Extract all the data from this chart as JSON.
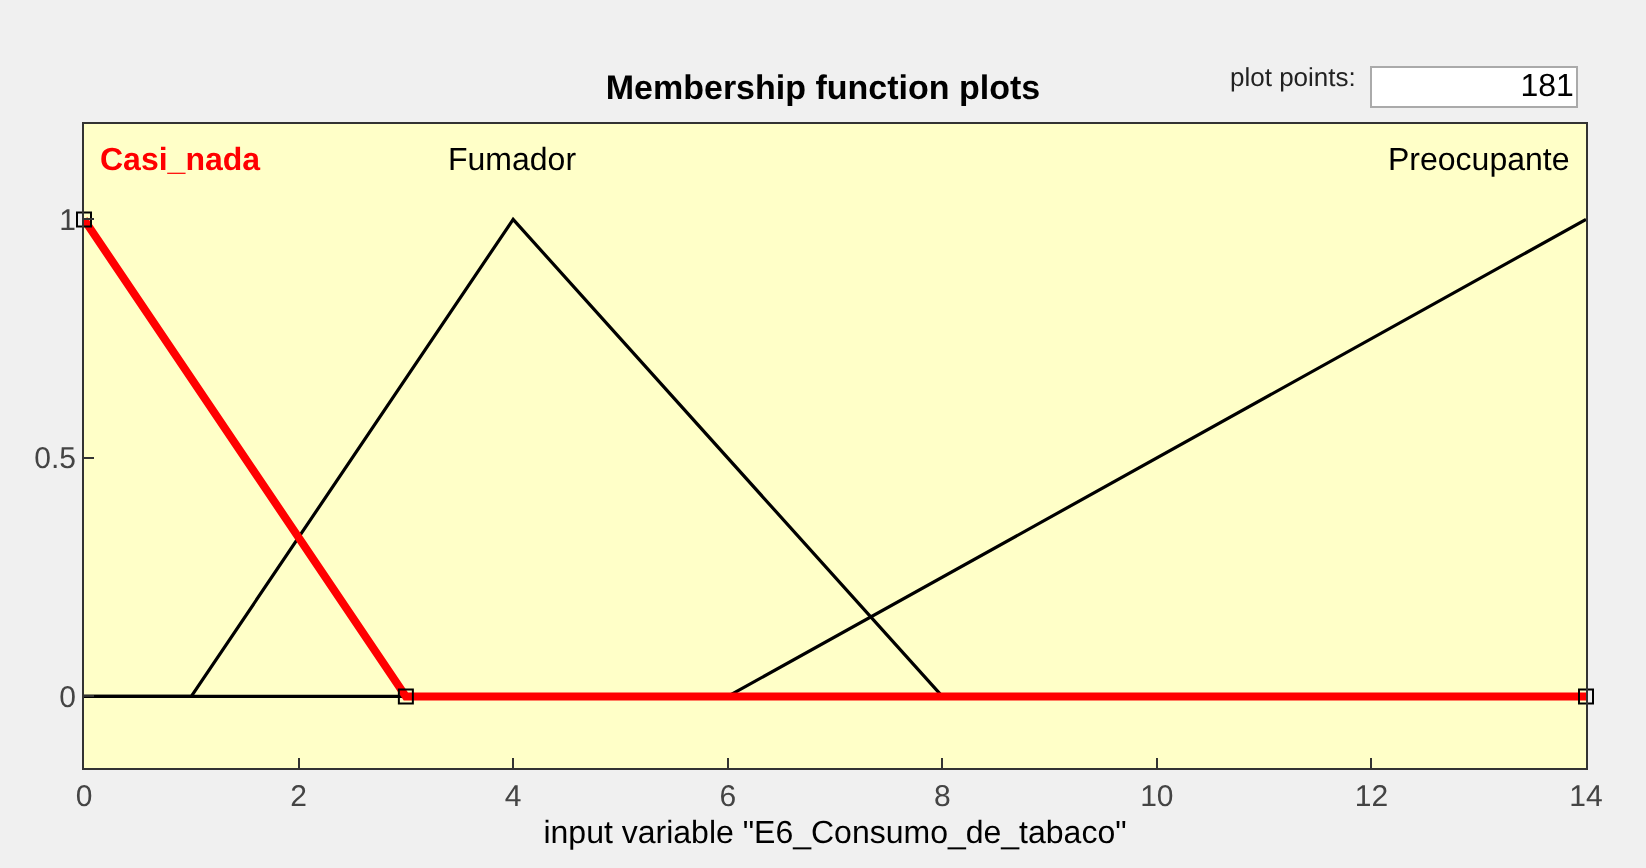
{
  "chart_data": {
    "type": "line",
    "title": "Membership function plots",
    "xlabel": "input variable \"E6_Consumo_de_tabaco\"",
    "annotations": [
      "plot points:",
      "181"
    ],
    "x": [
      0,
      1,
      3,
      4,
      6,
      8,
      14
    ],
    "series": [
      {
        "name": "Fumador",
        "color": "#000000",
        "values": [
          0,
          0,
          null,
          1,
          null,
          0,
          0
        ]
      },
      {
        "name": "Preocupante",
        "color": "#000000",
        "values": [
          0,
          null,
          null,
          null,
          0,
          null,
          1
        ]
      },
      {
        "name": "Casi_nada",
        "color": "#ff0000",
        "values": [
          1,
          null,
          0,
          null,
          null,
          null,
          0
        ],
        "marker": "square"
      }
    ],
    "xlim": [
      0,
      14
    ],
    "xticks": [
      0,
      2,
      4,
      6,
      8,
      10,
      12,
      14
    ],
    "ylim": [
      -0.15,
      1.2
    ],
    "yticks": [
      0,
      0.5,
      1
    ],
    "grid": false,
    "legend": false
  }
}
